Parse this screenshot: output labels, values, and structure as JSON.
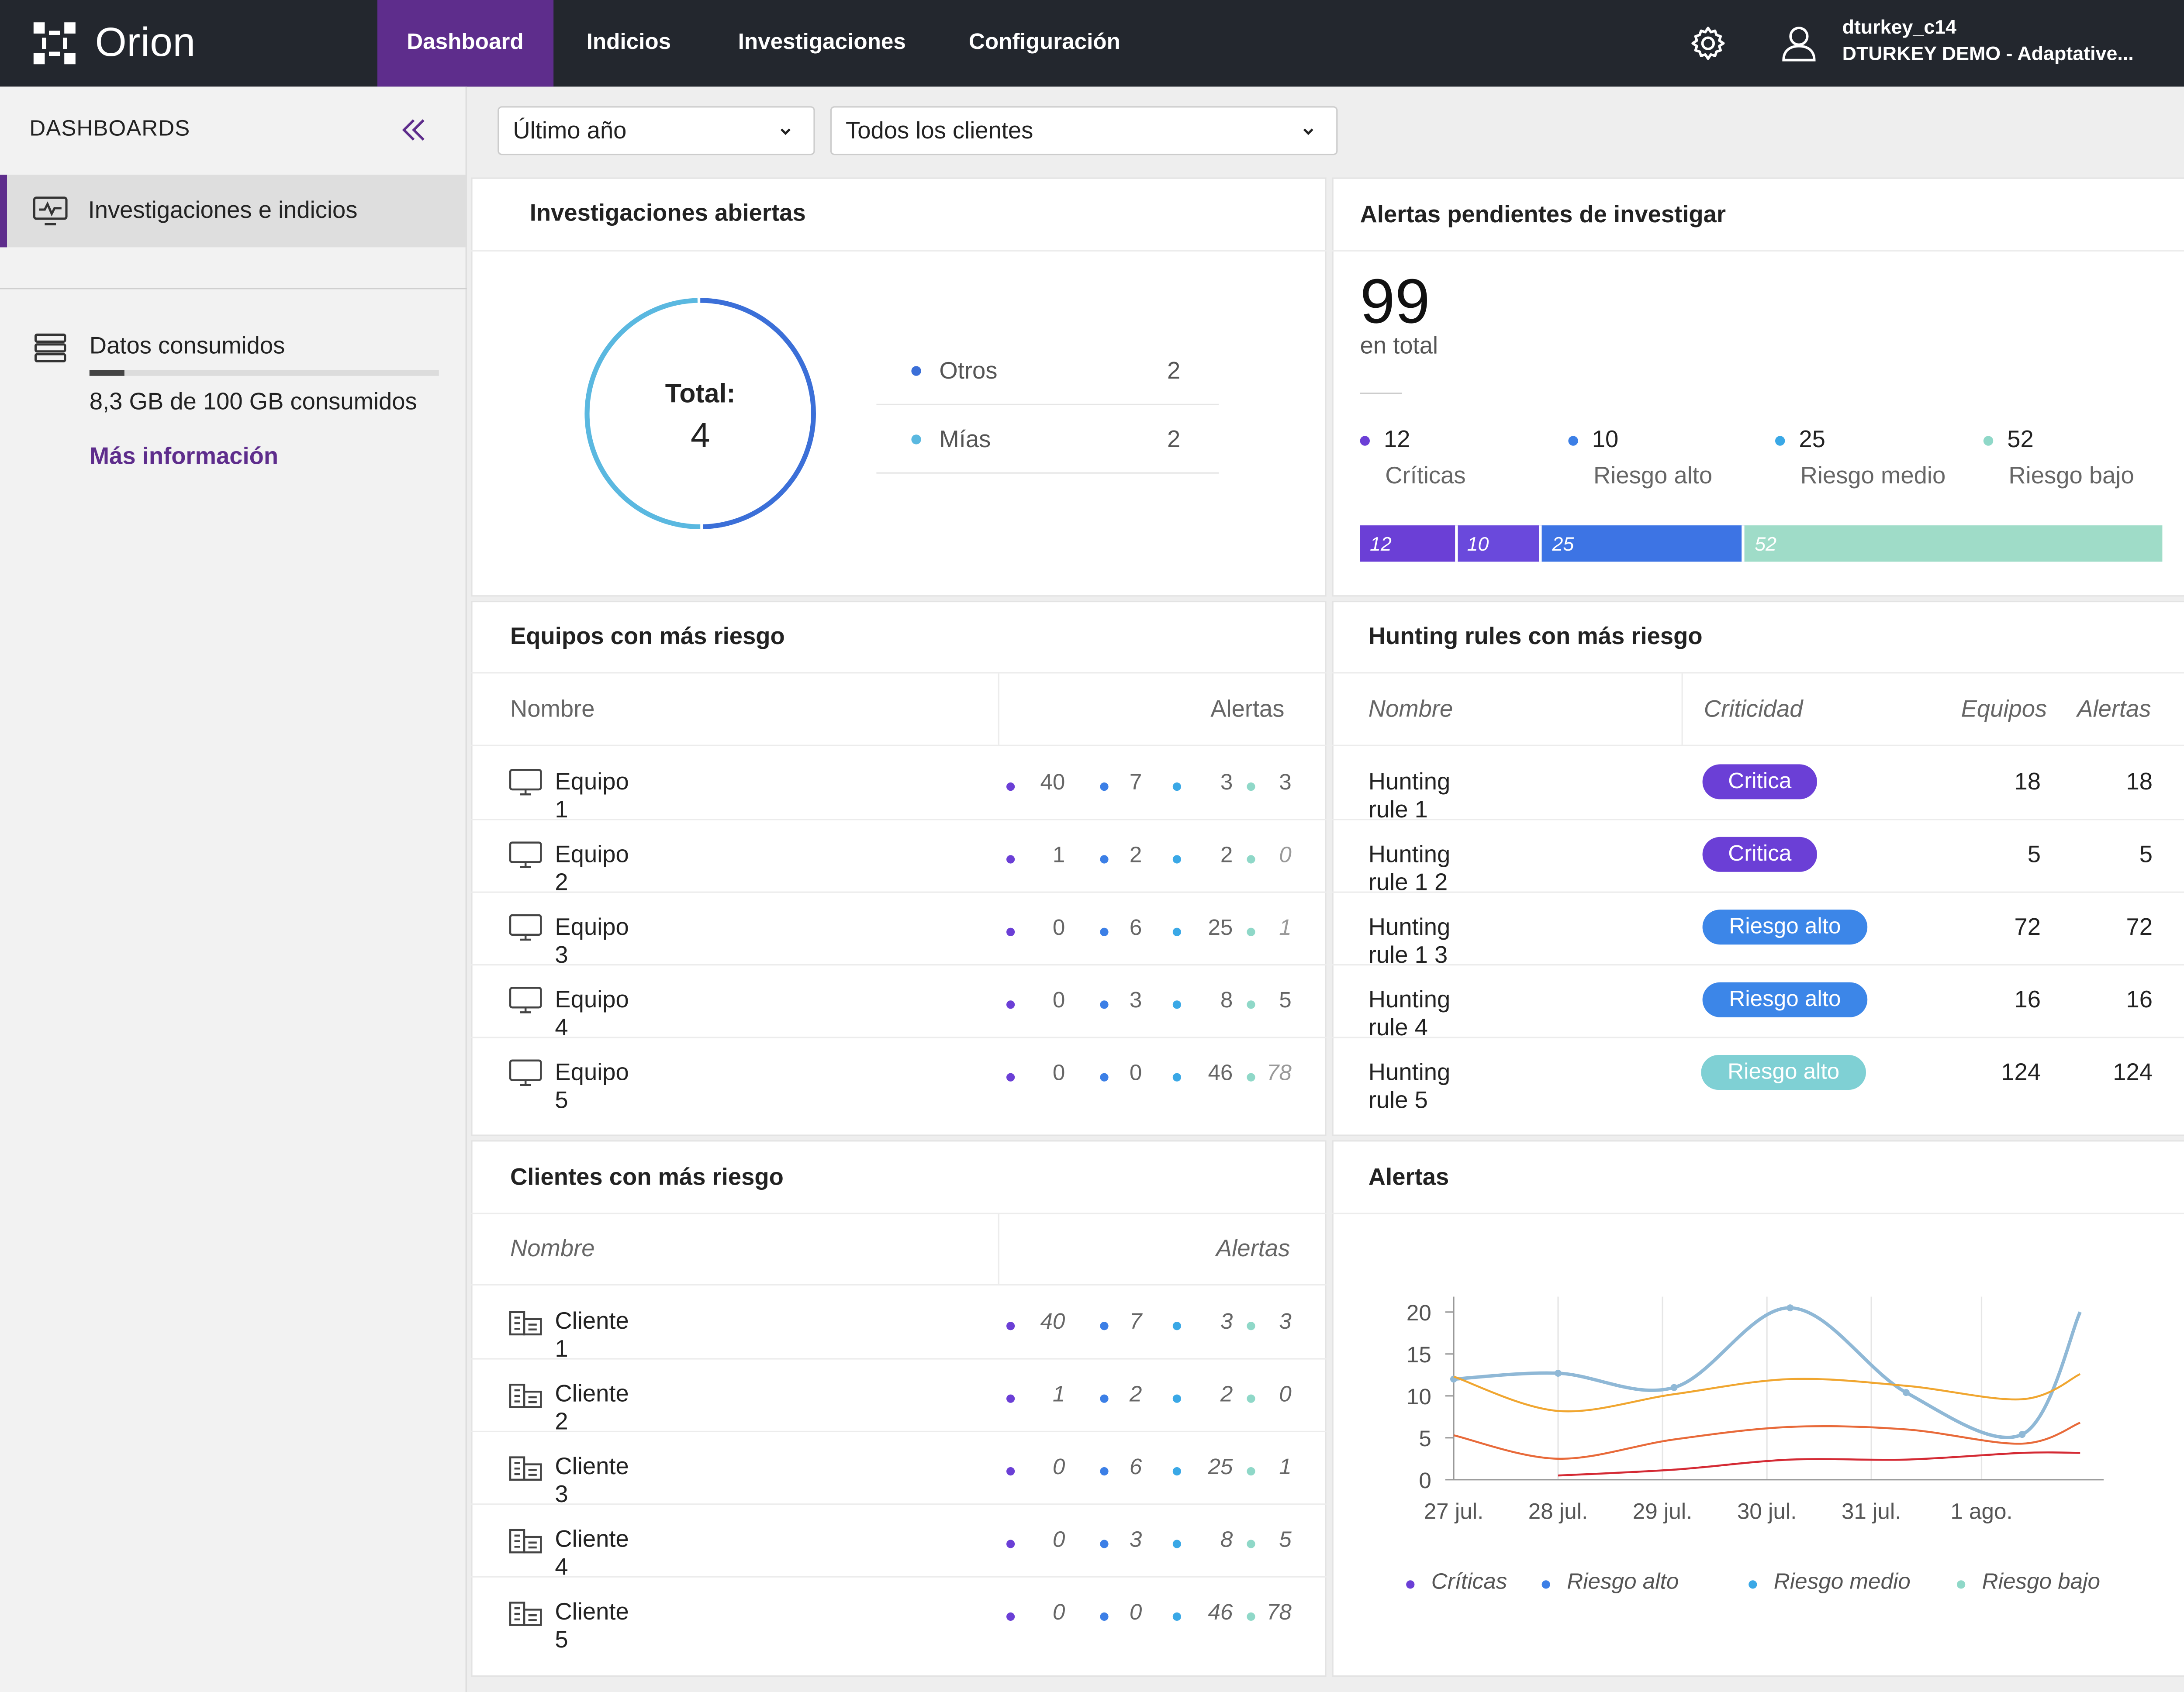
{
  "app": {
    "name": "Orion"
  },
  "nav": [
    {
      "label": "Dashboard",
      "active": true
    },
    {
      "label": "Indicios",
      "active": false
    },
    {
      "label": "Investigaciones",
      "active": false
    },
    {
      "label": "Configuración",
      "active": false
    }
  ],
  "user": {
    "name": "dturkey_c14",
    "org": "DTURKEY DEMO - Adaptative..."
  },
  "sidebar": {
    "title": "DASHBOARDS",
    "items": [
      {
        "label": "Investigaciones e indicios",
        "icon": "monitor-pulse-icon",
        "active": true
      }
    ],
    "data": {
      "title": "Datos consumidos",
      "used_gb": 8.3,
      "total_gb": 100,
      "text": "8,3 GB de 100 GB consumidos",
      "link": "Más información"
    }
  },
  "filters": {
    "period": "Último año",
    "client": "Todos los clientes"
  },
  "open_investigations": {
    "title": "Investigaciones abiertas",
    "total_label": "Total:",
    "total": "4",
    "legend": [
      {
        "label": "Otros",
        "value": "2",
        "color": "#3b6fd8"
      },
      {
        "label": "Mías",
        "value": "2",
        "color": "#5ab8e0"
      }
    ]
  },
  "pending_alerts": {
    "title": "Alertas pendientes de investigar",
    "total": "99",
    "total_sub": "en total",
    "levels": [
      {
        "value": "12",
        "label": "Críticas",
        "color": "#6b3fd6"
      },
      {
        "value": "10",
        "label": "Riesgo alto",
        "color": "#3c7fe6"
      },
      {
        "value": "25",
        "label": "Riesgo medio",
        "color": "#3aa8e6"
      },
      {
        "value": "52",
        "label": "Riesgo bajo",
        "color": "#8fd8c8"
      }
    ],
    "bar_colors": [
      "#6b3fd6",
      "#6a49dc",
      "#3d74e4",
      "#9fdcc8"
    ]
  },
  "risky_devices": {
    "title": "Equipos con más riesgo",
    "col_name": "Nombre",
    "col_alerts": "Alertas",
    "rows": [
      {
        "name": "Equipo 1",
        "c": "40",
        "h": "7",
        "m": "3",
        "l": "3"
      },
      {
        "name": "Equipo  2",
        "c": "1",
        "h": "2",
        "m": "2",
        "l": "0"
      },
      {
        "name": "Equipo  3",
        "c": "0",
        "h": "6",
        "m": "25",
        "l": "1"
      },
      {
        "name": "Equipo  4",
        "c": "0",
        "h": "3",
        "m": "8",
        "l": "5"
      },
      {
        "name": "Equipo  5",
        "c": "0",
        "h": "0",
        "m": "46",
        "l": "78"
      }
    ]
  },
  "hunting_rules": {
    "title": "Hunting rules con más riesgo",
    "col_name": "Nombre",
    "col_crit": "Criticidad",
    "col_devices": "Equipos",
    "col_alerts": "Alertas",
    "rows": [
      {
        "name": "Hunting rule 1",
        "crit": "Critica",
        "crit_color": "#6b3fd6",
        "devices": "18",
        "alerts": "18"
      },
      {
        "name": "Hunting rule 1 2",
        "crit": "Critica",
        "crit_color": "#6b3fd6",
        "devices": "5",
        "alerts": "5"
      },
      {
        "name": "Hunting rule 1 3",
        "crit": "Riesgo alto",
        "crit_color": "#3c86e8",
        "devices": "72",
        "alerts": "72"
      },
      {
        "name": "Hunting rule 4",
        "crit": "Riesgo alto",
        "crit_color": "#3c86e8",
        "devices": "16",
        "alerts": "16"
      },
      {
        "name": "Hunting rule 5",
        "crit": "Riesgo alto",
        "crit_color": "#7fd0d4",
        "devices": "124",
        "alerts": "124"
      }
    ]
  },
  "risky_clients": {
    "title": "Clientes con más riesgo",
    "col_name": "Nombre",
    "col_alerts": "Alertas",
    "rows": [
      {
        "name": "Cliente 1",
        "c": "40",
        "h": "7",
        "m": "3",
        "l": "3"
      },
      {
        "name": "Cliente  2",
        "c": "1",
        "h": "2",
        "m": "2",
        "l": "0"
      },
      {
        "name": "Cliente  3",
        "c": "0",
        "h": "6",
        "m": "25",
        "l": "1"
      },
      {
        "name": "Cliente  4",
        "c": "0",
        "h": "3",
        "m": "8",
        "l": "5"
      },
      {
        "name": "Cliente  5",
        "c": "0",
        "h": "0",
        "m": "46",
        "l": "78"
      }
    ]
  },
  "severity_colors": {
    "c": "#6b3fd6",
    "h": "#3c7fe6",
    "m": "#3aa8e6",
    "l": "#8fd8c8"
  },
  "alerts_chart": {
    "title": "Alertas",
    "chart_data": {
      "type": "line",
      "x": [
        "27 jul.",
        "28 jul.",
        "29 jul.",
        "30 jul.",
        "31 jul.",
        "1 ago."
      ],
      "ylim": [
        0,
        20
      ],
      "yticks": [
        "0",
        "5",
        "10",
        "15",
        "20"
      ],
      "grid": true,
      "legend_position": "bottom",
      "legend": [
        {
          "label": "Críticas",
          "color": "#6b3fd6"
        },
        {
          "label": "Riesgo alto",
          "color": "#3c7fe6"
        },
        {
          "label": "Riesgo medio",
          "color": "#3aa8e6"
        },
        {
          "label": "Riesgo bajo",
          "color": "#8fd8c8"
        }
      ],
      "series": [
        {
          "color": "#8fb8d6",
          "points": [
            [
              0,
              12
            ],
            [
              0.9,
              12.7
            ],
            [
              1.9,
              11
            ],
            [
              2.9,
              20.5
            ],
            [
              3.9,
              10.4
            ],
            [
              4.9,
              5.4
            ],
            [
              5.4,
              20
            ]
          ]
        },
        {
          "color": "#f0a630",
          "points": [
            [
              0,
              12.3
            ],
            [
              0.9,
              8.2
            ],
            [
              1.9,
              10.2
            ],
            [
              2.9,
              12
            ],
            [
              3.9,
              11.2
            ],
            [
              4.9,
              9.6
            ],
            [
              5.4,
              12.6
            ]
          ]
        },
        {
          "color": "#e86a3a",
          "points": [
            [
              0,
              5.3
            ],
            [
              0.9,
              2.5
            ],
            [
              1.9,
              4.8
            ],
            [
              2.9,
              6.3
            ],
            [
              3.9,
              6
            ],
            [
              4.9,
              4.3
            ],
            [
              5.4,
              6.8
            ]
          ]
        },
        {
          "color": "#d42a34",
          "points": [
            [
              0.9,
              0.5
            ],
            [
              1.9,
              1.2
            ],
            [
              2.9,
              2.4
            ],
            [
              3.9,
              2.4
            ],
            [
              4.9,
              3.2
            ],
            [
              5.4,
              3.2
            ]
          ]
        }
      ]
    }
  }
}
